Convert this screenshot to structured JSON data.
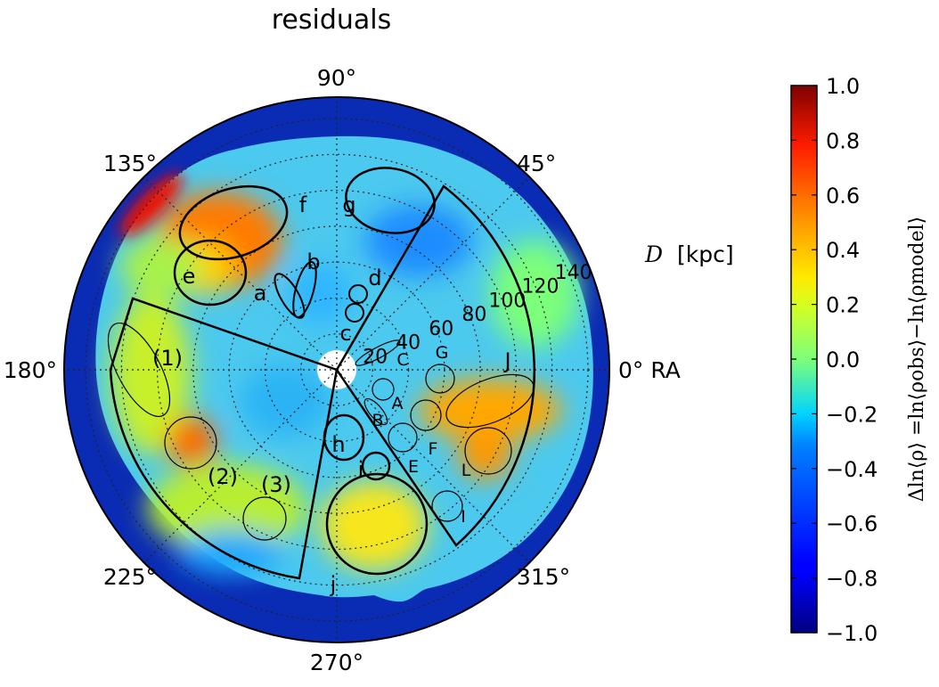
{
  "chart_data": {
    "type": "heatmap",
    "projection": "polar",
    "title": "residuals",
    "angular_axis": {
      "ticks": [
        "0° RA",
        "45°",
        "90°",
        "135°",
        "180°",
        "225°",
        "270°",
        "315°"
      ],
      "tick_values_deg": [
        0,
        45,
        90,
        135,
        180,
        225,
        270,
        315
      ]
    },
    "radial_axis": {
      "label": "D [kpc]",
      "label_symbol": "D",
      "label_unit": "[kpc]",
      "ticks": [
        "20",
        "40",
        "60",
        "80",
        "100",
        "120",
        "140"
      ],
      "tick_values": [
        20,
        40,
        60,
        80,
        100,
        120,
        140
      ],
      "range": [
        0,
        140
      ]
    },
    "colorbar": {
      "label": "Δln⟨ρ⟩ =ln⟨ρobs⟩−ln⟨ρmodel⟩",
      "range": [
        -1.0,
        1.0
      ],
      "ticks": [
        "1.0",
        "0.8",
        "0.6",
        "0.4",
        "0.2",
        "0.0",
        "−0.2",
        "−0.4",
        "−0.6",
        "−0.8",
        "−1.0"
      ],
      "tick_values": [
        1.0,
        0.8,
        0.6,
        0.4,
        0.2,
        0.0,
        -0.2,
        -0.4,
        -0.6,
        -0.8,
        -1.0
      ],
      "colormap": "jet"
    },
    "regions": [
      {
        "label": "(1)",
        "shape": "sector",
        "ra_min": 160,
        "ra_max": 260,
        "d_min": 0,
        "d_max": 115
      },
      {
        "label": "(2)",
        "ra": 213,
        "d": 65
      },
      {
        "label": "(3)",
        "ra": 237,
        "d": 72
      },
      {
        "label": "a",
        "ra": 139,
        "d": 40
      },
      {
        "label": "b",
        "ra": 122,
        "d": 45
      },
      {
        "label": "c",
        "ra": 105,
        "d": 20
      },
      {
        "label": "d",
        "ra": 78,
        "d": 40
      },
      {
        "label": "e",
        "ra": 153,
        "d": 94
      },
      {
        "label": "f",
        "ra": 113,
        "d": 100
      },
      {
        "label": "g",
        "ra": 92,
        "d": 93
      },
      {
        "label": "h",
        "ra": 276,
        "d": 40
      },
      {
        "label": "i",
        "ra": 291,
        "d": 52
      },
      {
        "label": "j",
        "ra": 270,
        "d": 100
      },
      {
        "label": "A",
        "ra": 349,
        "d": 32
      },
      {
        "label": "B",
        "ra": 323,
        "d": 33
      },
      {
        "label": "C",
        "ra": 4,
        "d": 35
      },
      {
        "label": "E",
        "ra": 307,
        "d": 58
      },
      {
        "label": "F",
        "ra": 324,
        "d": 67
      },
      {
        "label": "G",
        "ra": 6,
        "d": 55
      },
      {
        "label": "I",
        "ra": 310,
        "d": 100
      },
      {
        "label": "J",
        "ra": 5,
        "d": 92
      },
      {
        "label": "L",
        "ra": 336,
        "d": 87
      },
      {
        "label": "sector",
        "shape": "sector",
        "ra_min": 290,
        "ra_max": 420,
        "d_min": 0,
        "d_max": 140
      }
    ]
  }
}
